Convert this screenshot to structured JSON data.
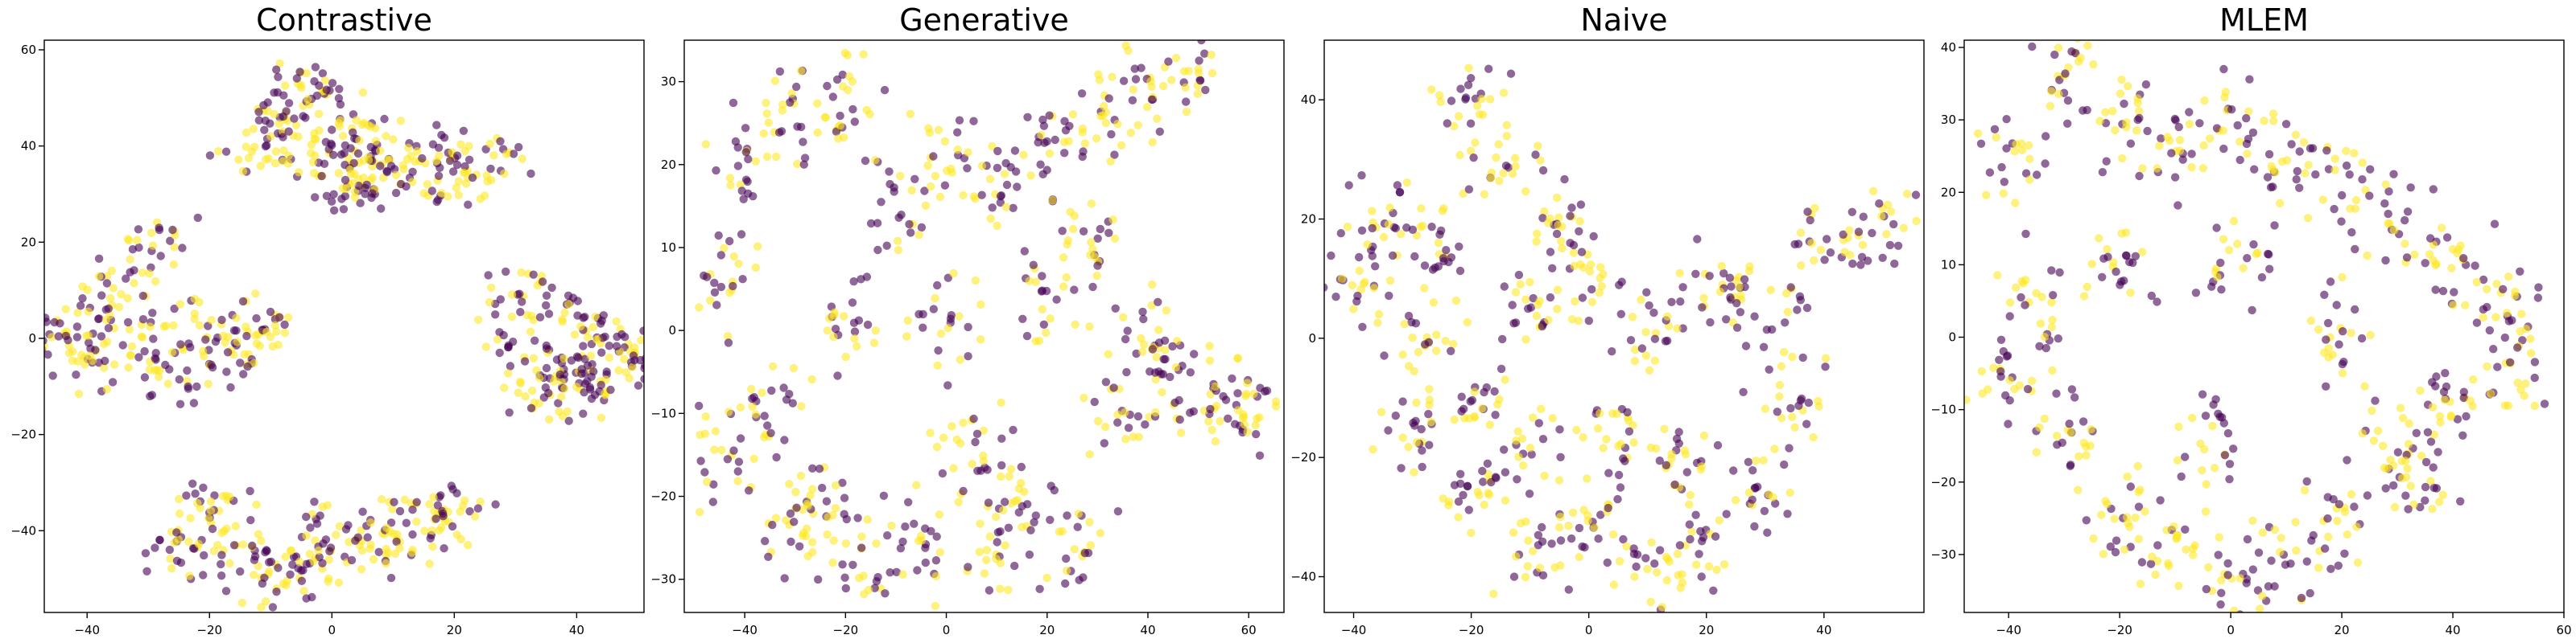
{
  "figure": {
    "point_colors": [
      "#440154",
      "#fde725"
    ],
    "point_opacity": 0.6
  },
  "chart_data": [
    {
      "type": "scatter",
      "title": "Contrastive",
      "xlabel": "",
      "ylabel": "",
      "xlim": [
        -47,
        51
      ],
      "ylim": [
        -57,
        62
      ],
      "xticks": [
        -40,
        -20,
        0,
        20,
        40
      ],
      "yticks": [
        -40,
        -20,
        0,
        20,
        40,
        60
      ],
      "grid": false,
      "legend": "none",
      "series": [
        {
          "values_desc": "clusters",
          "points": [
            [
              -10,
              45
            ],
            [
              -5,
              52
            ],
            [
              0,
              48
            ],
            [
              5,
              42
            ],
            [
              10,
              38
            ],
            [
              15,
              36
            ],
            [
              20,
              35
            ],
            [
              25,
              36
            ],
            [
              -12,
              40
            ],
            [
              -3,
              38
            ],
            [
              8,
              33
            ],
            [
              2,
              30
            ],
            [
              -30,
              20
            ],
            [
              -35,
              10
            ],
            [
              -40,
              2
            ],
            [
              -45,
              0
            ],
            [
              -30,
              0
            ],
            [
              -20,
              2
            ],
            [
              -15,
              -3
            ],
            [
              -10,
              2
            ],
            [
              -25,
              -8
            ],
            [
              -38,
              -5
            ],
            [
              30,
              8
            ],
            [
              38,
              5
            ],
            [
              45,
              0
            ],
            [
              48,
              -5
            ],
            [
              40,
              -10
            ],
            [
              32,
              -5
            ],
            [
              35,
              -12
            ],
            [
              42,
              -8
            ],
            [
              -25,
              -45
            ],
            [
              -15,
              -42
            ],
            [
              -5,
              -48
            ],
            [
              5,
              -45
            ],
            [
              15,
              -38
            ],
            [
              20,
              -35
            ],
            [
              -20,
              -35
            ],
            [
              0,
              -40
            ],
            [
              10,
              -42
            ],
            [
              -10,
              -50
            ]
          ]
        }
      ]
    },
    {
      "type": "scatter",
      "title": "Generative",
      "xlabel": "",
      "ylabel": "",
      "xlim": [
        -52,
        67
      ],
      "ylim": [
        -34,
        35
      ],
      "xticks": [
        -40,
        -20,
        0,
        20,
        40,
        60
      ],
      "yticks": [
        -30,
        -20,
        -10,
        0,
        10,
        20,
        30
      ],
      "grid": false,
      "legend": "none",
      "series": [
        {
          "values_desc": "spread",
          "points": [
            [
              -45,
              5
            ],
            [
              -40,
              20
            ],
            [
              -30,
              25
            ],
            [
              -20,
              28
            ],
            [
              -10,
              15
            ],
            [
              0,
              20
            ],
            [
              10,
              18
            ],
            [
              20,
              22
            ],
            [
              30,
              25
            ],
            [
              40,
              28
            ],
            [
              48,
              32
            ],
            [
              -35,
              -10
            ],
            [
              -25,
              -20
            ],
            [
              -15,
              -28
            ],
            [
              -5,
              -25
            ],
            [
              5,
              -15
            ],
            [
              15,
              -20
            ],
            [
              25,
              -25
            ],
            [
              35,
              -10
            ],
            [
              45,
              -5
            ],
            [
              55,
              -8
            ],
            [
              60,
              -10
            ],
            [
              -20,
              0
            ],
            [
              0,
              0
            ],
            [
              20,
              5
            ],
            [
              40,
              0
            ],
            [
              -30,
              -25
            ],
            [
              10,
              -27
            ],
            [
              -45,
              -15
            ],
            [
              30,
              10
            ]
          ]
        }
      ]
    },
    {
      "type": "scatter",
      "title": "Naive",
      "xlabel": "",
      "ylabel": "",
      "xlim": [
        -45,
        57
      ],
      "ylim": [
        -46,
        50
      ],
      "xticks": [
        -40,
        -20,
        0,
        20,
        40
      ],
      "yticks": [
        -40,
        -20,
        0,
        20,
        40
      ],
      "grid": false,
      "legend": "none",
      "series": [
        {
          "values_desc": "spread",
          "points": [
            [
              -20,
              40
            ],
            [
              -15,
              30
            ],
            [
              -35,
              20
            ],
            [
              -40,
              10
            ],
            [
              -30,
              0
            ],
            [
              -20,
              -10
            ],
            [
              -10,
              5
            ],
            [
              0,
              10
            ],
            [
              10,
              0
            ],
            [
              20,
              10
            ],
            [
              30,
              5
            ],
            [
              40,
              15
            ],
            [
              50,
              18
            ],
            [
              -20,
              -25
            ],
            [
              -10,
              -35
            ],
            [
              0,
              -30
            ],
            [
              10,
              -40
            ],
            [
              20,
              -35
            ],
            [
              30,
              -25
            ],
            [
              -5,
              20
            ],
            [
              -25,
              15
            ],
            [
              35,
              -10
            ],
            [
              15,
              -20
            ],
            [
              -30,
              -15
            ],
            [
              5,
              -15
            ],
            [
              -10,
              -20
            ]
          ]
        }
      ]
    },
    {
      "type": "scatter",
      "title": "MLEM",
      "xlabel": "",
      "ylabel": "",
      "xlim": [
        -48,
        60
      ],
      "ylim": [
        -38,
        41
      ],
      "xticks": [
        -40,
        -20,
        0,
        20,
        40,
        60
      ],
      "yticks": [
        -30,
        -20,
        -10,
        0,
        10,
        20,
        30,
        40
      ],
      "grid": false,
      "legend": "none",
      "series": [
        {
          "values_desc": "spread",
          "points": [
            [
              -40,
              25
            ],
            [
              -30,
              35
            ],
            [
              -20,
              30
            ],
            [
              -10,
              25
            ],
            [
              0,
              30
            ],
            [
              10,
              25
            ],
            [
              20,
              20
            ],
            [
              30,
              15
            ],
            [
              40,
              10
            ],
            [
              50,
              5
            ],
            [
              -40,
              -5
            ],
            [
              -30,
              -15
            ],
            [
              -20,
              -25
            ],
            [
              -10,
              -30
            ],
            [
              0,
              -35
            ],
            [
              10,
              -30
            ],
            [
              20,
              -25
            ],
            [
              30,
              -15
            ],
            [
              40,
              -10
            ],
            [
              50,
              -5
            ],
            [
              -20,
              10
            ],
            [
              0,
              10
            ],
            [
              20,
              0
            ],
            [
              -5,
              -15
            ],
            [
              35,
              -20
            ],
            [
              -35,
              5
            ]
          ]
        }
      ]
    }
  ]
}
